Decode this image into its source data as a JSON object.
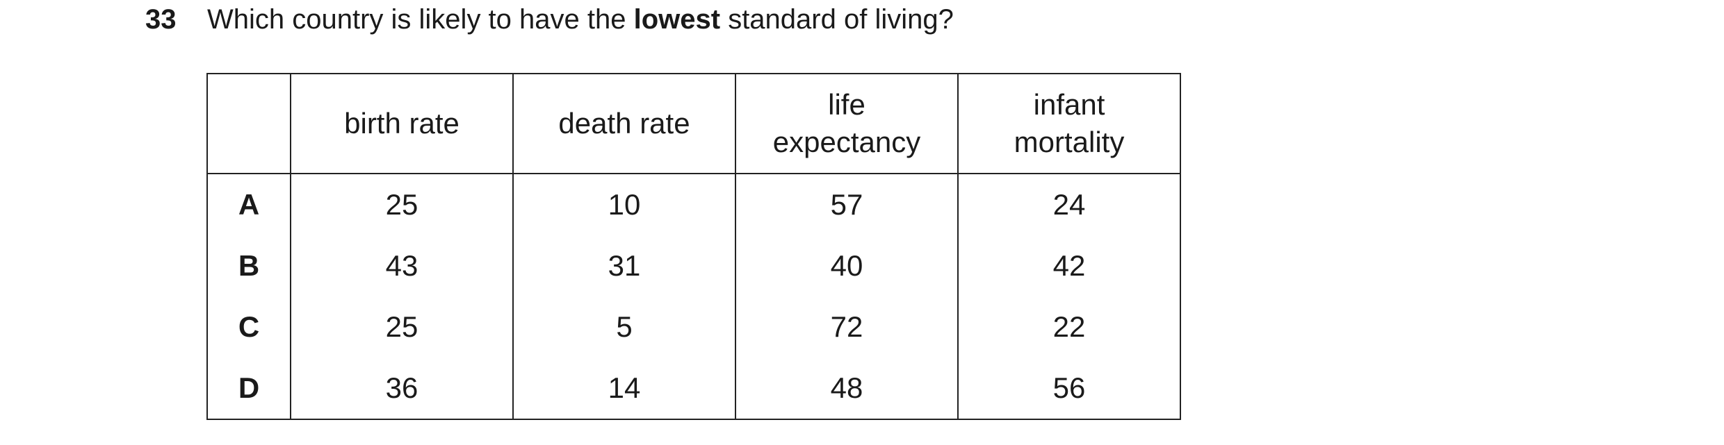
{
  "question": {
    "number": "33",
    "text_before": "Which country is likely to have the ",
    "text_bold": "lowest",
    "text_after": " standard of living?"
  },
  "table": {
    "headers": {
      "corner": "",
      "birth_rate": "birth rate",
      "death_rate": "death rate",
      "life_expectancy_1": "life",
      "life_expectancy_2": "expectancy",
      "infant_mortality_1": "infant",
      "infant_mortality_2": "mortality"
    },
    "rows": [
      {
        "label": "A",
        "birth_rate": "25",
        "death_rate": "10",
        "life_expectancy": "57",
        "infant_mortality": "24"
      },
      {
        "label": "B",
        "birth_rate": "43",
        "death_rate": "31",
        "life_expectancy": "40",
        "infant_mortality": "42"
      },
      {
        "label": "C",
        "birth_rate": "25",
        "death_rate": "5",
        "life_expectancy": "72",
        "infant_mortality": "22"
      },
      {
        "label": "D",
        "birth_rate": "36",
        "death_rate": "14",
        "life_expectancy": "48",
        "infant_mortality": "56"
      }
    ]
  }
}
